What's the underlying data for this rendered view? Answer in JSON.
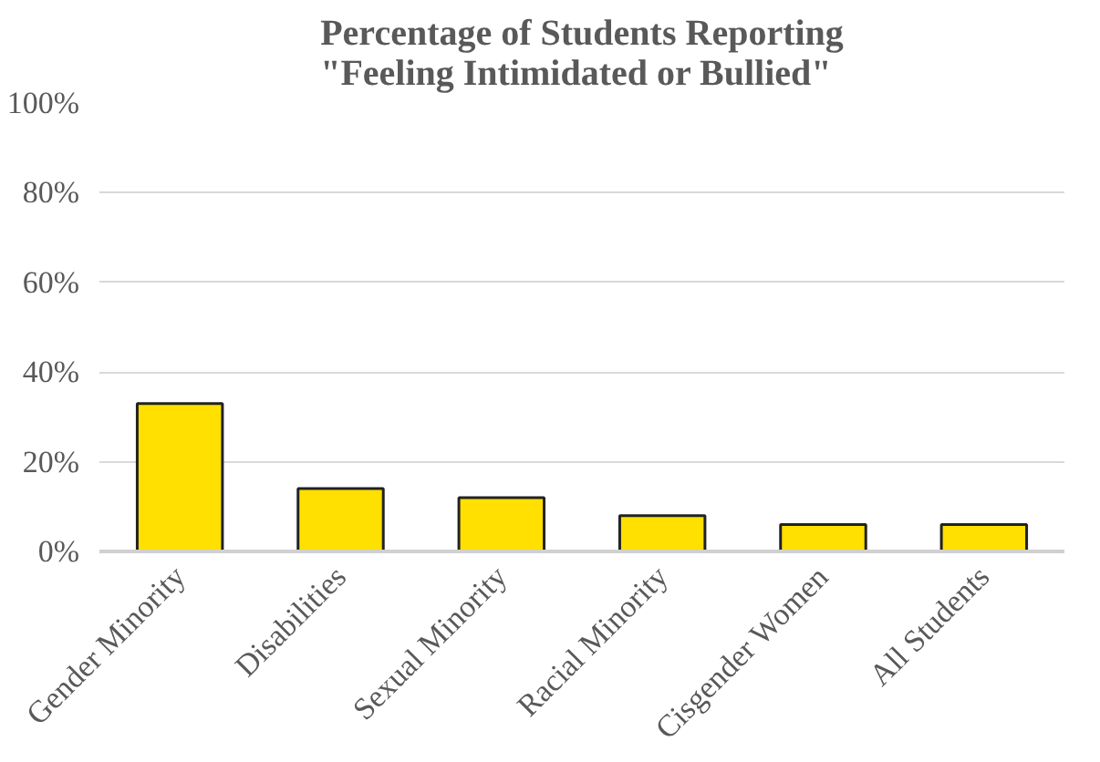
{
  "chart_data": {
    "type": "bar",
    "title": "Percentage of Students Reporting\n\"Feeling Intimidated or Bullied\"",
    "categories": [
      "Gender Minority",
      "Disabilities",
      "Sexual Minority",
      "Racial Minority",
      "Cisgender Women",
      "All Students"
    ],
    "values": [
      33,
      14,
      12,
      8,
      6,
      6
    ],
    "color": "#ffe000",
    "ylim": [
      0,
      100
    ],
    "yticks": [
      {
        "value": 0,
        "label": "0%"
      },
      {
        "value": 20,
        "label": "20%"
      },
      {
        "value": 40,
        "label": "40%"
      },
      {
        "value": 60,
        "label": "60%"
      },
      {
        "value": 80,
        "label": "80%"
      },
      {
        "value": 100,
        "label": "100%"
      }
    ],
    "grid": "y"
  }
}
